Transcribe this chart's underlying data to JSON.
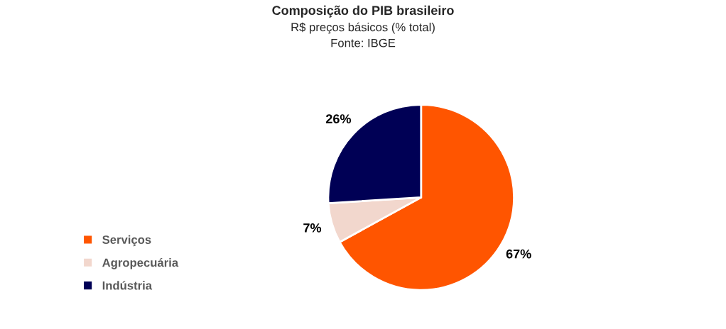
{
  "chart_data": {
    "type": "pie",
    "title": "Composição do PIB brasileiro",
    "subtitle": "R$ preços básicos (% total)",
    "annotations": [
      "Fonte: IBGE"
    ],
    "categories": [
      "Serviços",
      "Agropecuária",
      "Indústria"
    ],
    "values": [
      67,
      7,
      26
    ],
    "value_labels": [
      "67%",
      "7%",
      "26%"
    ],
    "colors": [
      "#ff5500",
      "#f2d7cd",
      "#000055"
    ],
    "legend": "bottom left"
  }
}
